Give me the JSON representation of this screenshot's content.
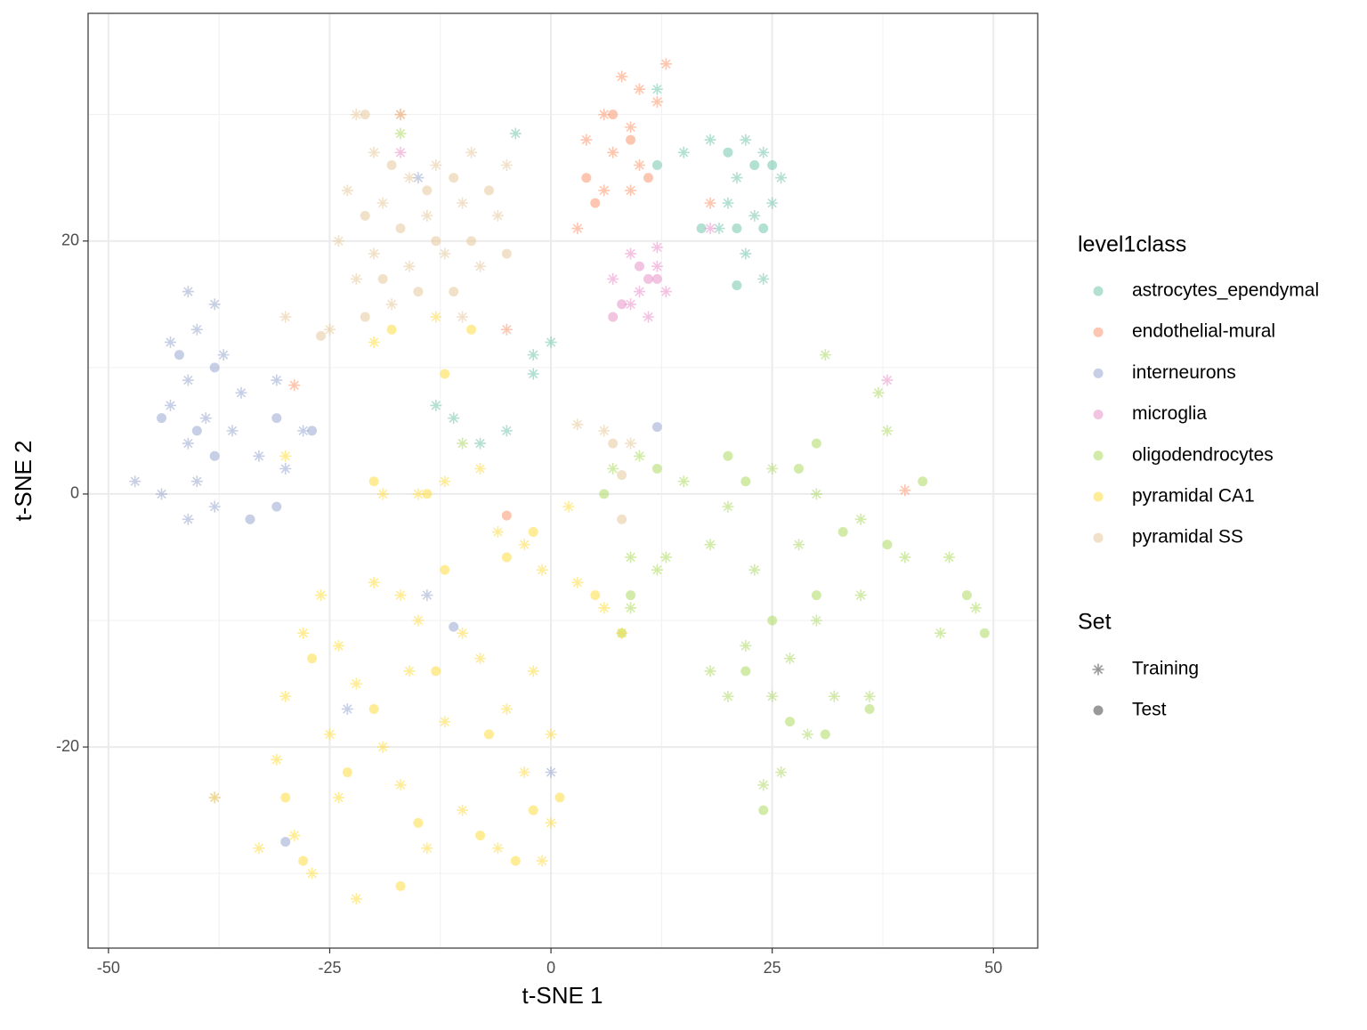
{
  "chart_data": {
    "type": "scatter",
    "xlabel": "t-SNE 1",
    "ylabel": "t-SNE 2",
    "xlim": [
      -52.3,
      55.0
    ],
    "ylim": [
      -35.9,
      38.0
    ],
    "xticks": [
      -50,
      -25,
      0,
      25,
      50
    ],
    "yticks": [
      -20,
      0,
      20
    ],
    "x_minor_grid": [
      -37.5,
      -12.5,
      12.5,
      37.5
    ],
    "y_minor_grid": [
      -30,
      -10,
      10,
      30
    ],
    "grid": true,
    "alpha": 0.5,
    "color_legend_title": "level1class",
    "shape_legend": {
      "title": "Set",
      "items": [
        "Training",
        "Test"
      ],
      "shapes": [
        "asterisk",
        "circle"
      ],
      "color": "#333333"
    },
    "series": [
      {
        "name": "astrocytes_ependymal",
        "color": "#66c2a5",
        "sets": [
          {
            "x": [
              22,
              24,
              21,
              26,
              23,
              20,
              25,
              22,
              24,
              19,
              18,
              0,
              -2,
              -2,
              -13,
              -11,
              -8,
              -5,
              12,
              15,
              -4
            ],
            "y": [
              28,
              27,
              25,
              25,
              22,
              23,
              23,
              19,
              17,
              21,
              28,
              12,
              9.5,
              11,
              7,
              6,
              4,
              5,
              32,
              27,
              28.5
            ]
          },
          {
            "x": [
              20,
              23,
              21,
              24,
              17,
              21,
              25,
              12
            ],
            "y": [
              27,
              26,
              21,
              21,
              21,
              16.5,
              26,
              26
            ]
          }
        ]
      },
      {
        "name": "endothelial-mural",
        "color": "#fc8d62",
        "sets": [
          {
            "x": [
              8,
              10,
              6,
              9,
              12,
              7,
              10,
              6,
              9,
              13,
              4,
              3,
              -5,
              -17,
              40,
              -29,
              18
            ],
            "y": [
              33,
              32,
              30,
              29,
              31,
              27,
              26,
              24,
              24,
              34,
              28,
              21,
              13,
              30,
              0.3,
              8.6,
              23
            ]
          },
          {
            "x": [
              4,
              7,
              5,
              11,
              9,
              -5
            ],
            "y": [
              25,
              30,
              23,
              25,
              28,
              -1.7
            ]
          }
        ]
      },
      {
        "name": "interneurons",
        "color": "#8da0cb",
        "sets": [
          {
            "x": [
              -41,
              -38,
              -40,
              -43,
              -37,
              -41,
              -35,
              -43,
              -39,
              -31,
              -36,
              -41,
              -33,
              -40,
              -38,
              -41,
              -47,
              -44,
              -28,
              -30,
              -23,
              0,
              -14,
              -15
            ],
            "y": [
              16,
              15,
              13,
              12,
              11,
              9,
              8,
              7,
              6,
              9,
              5,
              4,
              3,
              1,
              -1,
              -2,
              1,
              0,
              5,
              2,
              -17,
              -22,
              -8,
              25
            ]
          },
          {
            "x": [
              -42,
              -38,
              -44,
              -40,
              -31,
              -27,
              -34,
              -38,
              -31,
              -11,
              -30,
              12
            ],
            "y": [
              11,
              10,
              6,
              5,
              6,
              5,
              -2,
              3,
              -1,
              -10.5,
              -27.5,
              5.3
            ]
          }
        ]
      },
      {
        "name": "microglia",
        "color": "#e78ac3",
        "sets": [
          {
            "x": [
              9,
              12,
              10,
              7,
              13,
              9,
              11,
              12,
              38,
              -17,
              18
            ],
            "y": [
              19,
              18,
              16,
              17,
              16,
              15,
              14,
              19.5,
              9,
              27,
              21
            ]
          },
          {
            "x": [
              8,
              11,
              7,
              12,
              10
            ],
            "y": [
              15,
              17,
              14,
              17,
              18
            ]
          }
        ]
      },
      {
        "name": "oligodendrocytes",
        "color": "#a6d854",
        "sets": [
          {
            "x": [
              7,
              10,
              15,
              20,
              25,
              30,
              35,
              38,
              37,
              31,
              28,
              23,
              18,
              13,
              9,
              40,
              45,
              48,
              44,
              35,
              30,
              27,
              22,
              18,
              25,
              29,
              26,
              24,
              32,
              36,
              9,
              12,
              20,
              -10,
              -17
            ],
            "y": [
              2,
              3,
              1,
              -1,
              2,
              0,
              -2,
              5,
              8,
              11,
              -4,
              -6,
              -4,
              -5,
              -5,
              -5,
              -5,
              -9,
              -11,
              -8,
              -10,
              -13,
              -12,
              -14,
              -16,
              -19,
              -22,
              -23,
              -16,
              -16,
              -9,
              -6,
              -16,
              4,
              28.5
            ]
          },
          {
            "x": [
              6,
              12,
              22,
              28,
              33,
              38,
              42,
              47,
              49,
              30,
              25,
              22,
              27,
              24,
              31,
              36,
              9,
              8,
              20,
              30
            ],
            "y": [
              0,
              2,
              1,
              2,
              -3,
              -4,
              1,
              -8,
              -11,
              -8,
              -10,
              -14,
              -18,
              -25,
              -19,
              -17,
              -8,
              -11,
              3,
              4
            ]
          }
        ]
      },
      {
        "name": "pyramidal CA1",
        "color": "#ffd92f",
        "sets": [
          {
            "x": [
              -26,
              -20,
              -17,
              -28,
              -24,
              -15,
              -10,
              -30,
              -22,
              -16,
              -8,
              -2,
              -31,
              -25,
              -19,
              -12,
              -5,
              0,
              -29,
              -24,
              -17,
              -10,
              -3,
              0,
              -33,
              -27,
              -22,
              -14,
              -6,
              -1,
              -38,
              -19,
              -15,
              -12,
              -8,
              -6,
              -3,
              -1,
              2,
              3,
              6,
              8,
              -13,
              -20,
              -30
            ],
            "y": [
              -8,
              -7,
              -8,
              -11,
              -12,
              -10,
              -11,
              -16,
              -15,
              -14,
              -13,
              -14,
              -21,
              -19,
              -20,
              -18,
              -17,
              -19,
              -27,
              -24,
              -23,
              -25,
              -22,
              -26,
              -28,
              -30,
              -32,
              -28,
              -28,
              -29,
              -24,
              0,
              0,
              1,
              2,
              -3,
              -4,
              -6,
              -1,
              -7,
              -9,
              -11,
              14,
              12,
              3
            ]
          },
          {
            "x": [
              -27,
              -20,
              -13,
              -7,
              -30,
              -23,
              -15,
              -8,
              -2,
              -28,
              -17,
              -4,
              -12,
              -20,
              -14,
              -5,
              -2,
              5,
              -18,
              -9,
              -12,
              1
            ],
            "y": [
              -13,
              -17,
              -14,
              -19,
              -24,
              -22,
              -26,
              -27,
              -25,
              -29,
              -31,
              -29,
              -6,
              1,
              0,
              -5,
              -3,
              -8,
              13,
              13,
              9.5,
              -24
            ]
          }
        ]
      },
      {
        "name": "pyramidal SS",
        "color": "#e5c494",
        "sets": [
          {
            "x": [
              -22,
              -17,
              -20,
              -16,
              -13,
              -9,
              -5,
              -23,
              -19,
              -14,
              -10,
              -6,
              -24,
              -20,
              -16,
              -12,
              -8,
              -22,
              -18,
              -10,
              -25,
              -30,
              -38,
              6,
              3,
              9
            ],
            "y": [
              30,
              30,
              27,
              25,
              26,
              27,
              26,
              24,
              23,
              22,
              23,
              22,
              20,
              19,
              18,
              19,
              18,
              17,
              15,
              14,
              13,
              14,
              -24,
              5,
              5.5,
              4
            ]
          },
          {
            "x": [
              -21,
              -18,
              -14,
              -11,
              -7,
              -21,
              -17,
              -13,
              -9,
              -5,
              -19,
              -15,
              -21,
              -26,
              -11,
              7,
              8,
              8
            ],
            "y": [
              30,
              26,
              24,
              25,
              24,
              22,
              21,
              20,
              20,
              19,
              17,
              16,
              14,
              12.5,
              16,
              4,
              -2,
              1.5
            ]
          }
        ]
      }
    ]
  }
}
